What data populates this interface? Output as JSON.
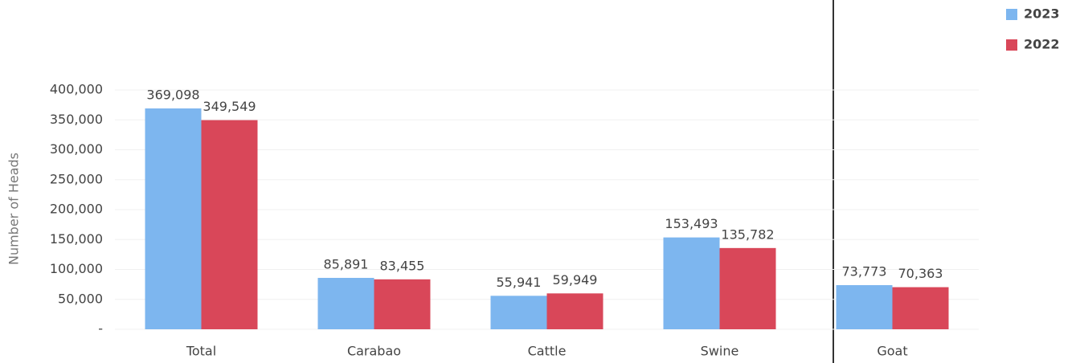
{
  "chart_data": {
    "type": "bar",
    "y_label": "Number of Heads",
    "categories": [
      "Total",
      "Carabao",
      "Cattle",
      "Swine",
      "Goat"
    ],
    "series": [
      {
        "name": "2023",
        "color": "#7db6ef",
        "values": [
          369098,
          85891,
          55941,
          153493,
          73773
        ],
        "value_labels": [
          "369,098",
          "85,891",
          "55,941",
          "153,493",
          "73,773"
        ]
      },
      {
        "name": "2022",
        "color": "#d94759",
        "values": [
          349549,
          83455,
          59949,
          135782,
          70363
        ],
        "value_labels": [
          "349,549",
          "83,455",
          "59,949",
          "135,782",
          "70,363"
        ]
      }
    ],
    "ylim": [
      0,
      400000
    ],
    "yticks": [
      {
        "value": 0,
        "label": "-"
      },
      {
        "value": 50000,
        "label": "50,000"
      },
      {
        "value": 100000,
        "label": "100,000"
      },
      {
        "value": 150000,
        "label": "150,000"
      },
      {
        "value": 200000,
        "label": "200,000"
      },
      {
        "value": 250000,
        "label": "250,000"
      },
      {
        "value": 300000,
        "label": "300,000"
      },
      {
        "value": 350000,
        "label": "350,000"
      },
      {
        "value": 400000,
        "label": "400,000"
      }
    ],
    "grid": true,
    "legend": "top-right"
  }
}
